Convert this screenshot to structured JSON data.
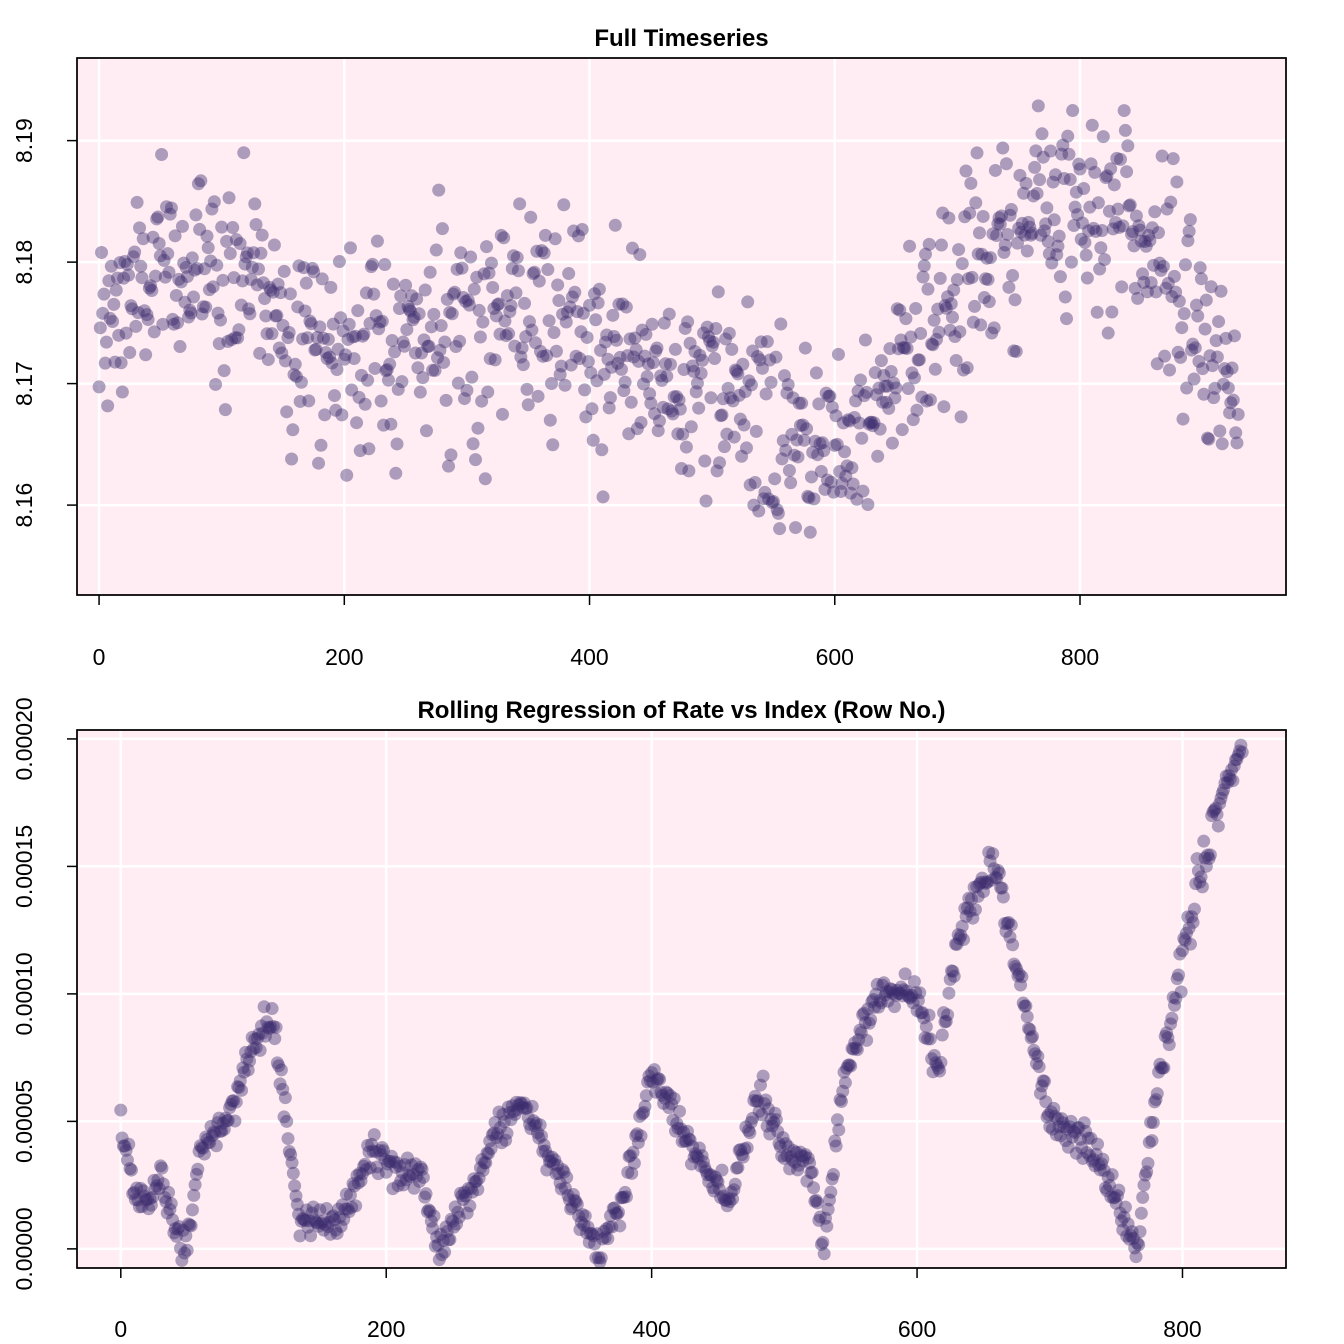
{
  "chart_data": [
    {
      "type": "scatter",
      "title": "Full Timeseries",
      "xlabel": "",
      "ylabel": "",
      "xlim": [
        -18,
        968
      ],
      "ylim": [
        8.1526,
        8.1968
      ],
      "x_ticks": [
        0,
        200,
        400,
        600,
        800
      ],
      "y_ticks": [
        8.16,
        8.17,
        8.18,
        8.19
      ],
      "x_tick_labels": [
        "0",
        "200",
        "400",
        "600",
        "800"
      ],
      "y_tick_labels": [
        "8.16",
        "8.17",
        "8.18",
        "8.19"
      ],
      "grid": true,
      "point_color": "#3b2a6e",
      "background_color": "#ffedf3",
      "n_points": 930,
      "trend_anchors": {
        "x": [
          0,
          20,
          60,
          100,
          130,
          160,
          200,
          260,
          320,
          380,
          440,
          480,
          520,
          560,
          600,
          640,
          680,
          720,
          760,
          800,
          830,
          860,
          890,
          930
        ],
        "y": [
          8.1725,
          8.177,
          8.179,
          8.1795,
          8.179,
          8.1745,
          8.1725,
          8.174,
          8.1755,
          8.174,
          8.1715,
          8.1695,
          8.168,
          8.1655,
          8.1645,
          8.1705,
          8.175,
          8.1805,
          8.1835,
          8.1855,
          8.185,
          8.181,
          8.175,
          8.1675
        ]
      },
      "noise_sd": 0.0042
    },
    {
      "type": "scatter",
      "title": "Rolling Regression of Rate vs Index (Row No.)",
      "xlabel": "",
      "ylabel": "",
      "xlim": [
        -33,
        878
      ],
      "ylim": [
        -7.5e-06,
        0.0002035
      ],
      "x_ticks": [
        0,
        200,
        400,
        600,
        800
      ],
      "y_ticks": [
        0.0,
        5e-05,
        0.0001,
        0.00015,
        0.0002
      ],
      "x_tick_labels": [
        "0",
        "200",
        "400",
        "600",
        "800"
      ],
      "y_tick_labels": [
        "0.00000",
        "0.00005",
        "0.00010",
        "0.00015",
        "0.00020"
      ],
      "grid": true,
      "point_color": "#3b2a6e",
      "background_color": "#ffedf3",
      "n_points": 846,
      "trend_anchors": {
        "x": [
          0,
          10,
          20,
          30,
          40,
          50,
          60,
          80,
          100,
          115,
          125,
          135,
          145,
          160,
          175,
          190,
          210,
          225,
          240,
          260,
          280,
          300,
          320,
          340,
          360,
          380,
          400,
          420,
          440,
          460,
          480,
          500,
          520,
          530,
          545,
          570,
          600,
          615,
          630,
          645,
          660,
          675,
          700,
          730,
          750,
          765,
          780,
          795,
          810,
          830,
          845
        ],
        "y": [
          5e-05,
          2e-05,
          2e-05,
          3e-05,
          1e-05,
          0.0,
          4e-05,
          5e-05,
          8e-05,
          9e-05,
          5e-05,
          1e-05,
          1e-05,
          1e-05,
          2e-05,
          4e-05,
          3e-05,
          3e-05,
          0.0,
          2e-05,
          4e-05,
          6e-05,
          4e-05,
          2e-05,
          0.0,
          2e-05,
          7e-05,
          5e-05,
          3e-05,
          2e-05,
          6e-05,
          4e-05,
          3e-05,
          0.0,
          7e-05,
          0.0001,
          0.0001,
          7e-05,
          0.00012,
          0.00014,
          0.00015,
          0.00011,
          5e-05,
          4e-05,
          2e-05,
          0.0,
          6e-05,
          0.0001,
          0.00014,
          0.00018,
          0.000195
        ]
      },
      "noise_sd": 3.5e-06
    }
  ]
}
